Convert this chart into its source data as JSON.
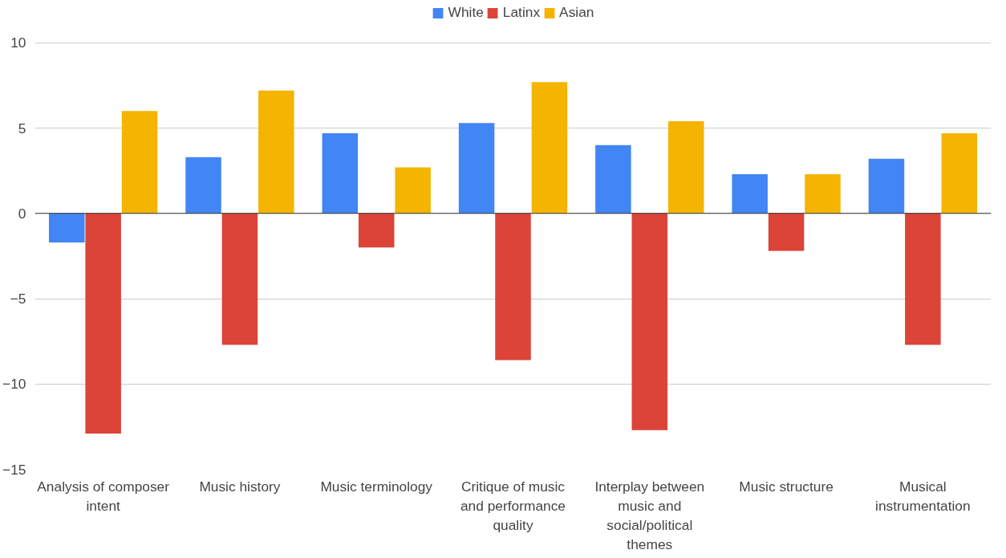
{
  "chart_data": {
    "type": "bar",
    "categories": [
      "Analysis of composer intent",
      "Music history",
      "Music terminology",
      "Critique of music and performance quality",
      "Interplay between music and social/political themes",
      "Music structure",
      "Musical instrumentation"
    ],
    "series": [
      {
        "name": "White",
        "color": "#4285f4",
        "values": [
          -1.7,
          3.3,
          4.7,
          5.3,
          4.0,
          2.3,
          3.2
        ]
      },
      {
        "name": "Latinx",
        "color": "#db4437",
        "values": [
          -12.9,
          -7.7,
          -2.0,
          -8.6,
          -12.7,
          -2.2,
          -7.7
        ]
      },
      {
        "name": "Asian",
        "color": "#f4b400",
        "values": [
          6.0,
          7.2,
          2.7,
          7.7,
          5.4,
          2.3,
          4.7
        ]
      }
    ],
    "ylim": [
      -15,
      10
    ],
    "yticks": [
      -15,
      -10,
      -5,
      0,
      5,
      10
    ],
    "grid": "y",
    "legend": "top"
  }
}
